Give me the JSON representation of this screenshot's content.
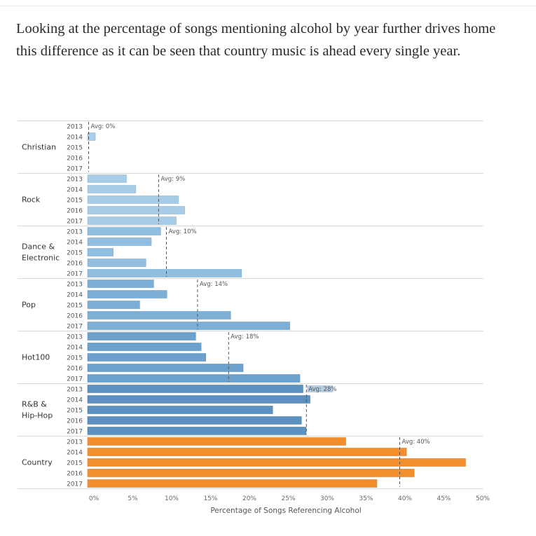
{
  "article": {
    "paragraph": "Looking at the percentage of songs mentioning alcohol by year further drives home this difference as it can be seen that country music is ahead every single year."
  },
  "chart_data": {
    "type": "bar",
    "orientation": "horizontal",
    "title": "",
    "xlabel": "Percentage of Songs Referencing Alcohol",
    "ylabel": "",
    "xlim": [
      0,
      50
    ],
    "x_ticks": [
      "0%",
      "5%",
      "10%",
      "15%",
      "20%",
      "25%",
      "30%",
      "35%",
      "40%",
      "45%",
      "50%"
    ],
    "x_tick_values": [
      0,
      5,
      10,
      15,
      20,
      25,
      30,
      35,
      40,
      45,
      50
    ],
    "grid": false,
    "legend": "none",
    "years": [
      "2013",
      "2014",
      "2015",
      "2016",
      "2017"
    ],
    "groups": [
      {
        "name": "Christian",
        "label_lines": [
          "Christian"
        ],
        "color": "#a9cfea",
        "avg": 0,
        "avg_label": "Avg: 0%",
        "values": [
          0,
          1.0,
          0,
          0,
          0
        ]
      },
      {
        "name": "Rock",
        "label_lines": [
          "Rock"
        ],
        "color": "#a6cce8",
        "avg": 9,
        "avg_label": "Avg: 9%",
        "values": [
          5.0,
          6.2,
          11.7,
          12.5,
          11.4
        ]
      },
      {
        "name": "Dance & Electronic",
        "label_lines": [
          "Dance &",
          "Electronic"
        ],
        "color": "#90bee0",
        "avg": 10,
        "avg_label": "Avg: 10%",
        "values": [
          9.4,
          8.2,
          3.3,
          7.5,
          19.8
        ]
      },
      {
        "name": "Pop",
        "label_lines": [
          "Pop"
        ],
        "color": "#7bafd6",
        "avg": 14,
        "avg_label": "Avg: 14%",
        "values": [
          8.5,
          10.2,
          6.7,
          18.4,
          26.0
        ]
      },
      {
        "name": "Hot100",
        "label_lines": [
          "Hot100"
        ],
        "color": "#6ca1cd",
        "avg": 18,
        "avg_label": "Avg: 18%",
        "values": [
          13.9,
          14.6,
          15.2,
          20.0,
          27.3
        ]
      },
      {
        "name": "R&B & Hip-Hop",
        "label_lines": [
          "R&B &",
          "Hip-Hop"
        ],
        "color": "#5c90c1",
        "avg": 28,
        "avg_label": "Avg: 28%",
        "values": [
          27.7,
          28.6,
          23.8,
          27.5,
          28.1
        ]
      },
      {
        "name": "Country",
        "label_lines": [
          "Country"
        ],
        "color": "#f28e2b",
        "avg": 40,
        "avg_label": "Avg: 40%",
        "values": [
          33.2,
          41.0,
          48.6,
          42.0,
          37.2
        ]
      }
    ]
  }
}
